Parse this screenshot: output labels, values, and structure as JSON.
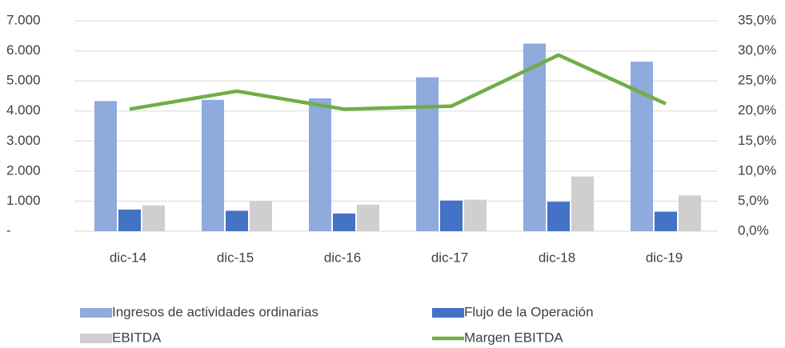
{
  "chart_data": {
    "type": "combo",
    "categories": [
      "dic-14",
      "dic-15",
      "dic-16",
      "dic-17",
      "dic-18",
      "dic-19"
    ],
    "series": [
      {
        "name": "Ingresos de actividades ordinarias",
        "type": "bar",
        "color": "#8faadc",
        "values": [
          4330,
          4370,
          4420,
          5120,
          6240,
          5640
        ]
      },
      {
        "name": "Flujo de la Operación",
        "type": "bar",
        "color": "#4472c4",
        "values": [
          720,
          680,
          590,
          1020,
          980,
          650
        ]
      },
      {
        "name": "EBITDA",
        "type": "bar",
        "color": "#d0cece",
        "values": [
          860,
          1000,
          880,
          1050,
          1820,
          1190
        ]
      },
      {
        "name": "Margen EBITDA",
        "type": "line",
        "axis": "y2",
        "color": "#70ad47",
        "values": [
          20.3,
          23.3,
          20.3,
          20.8,
          29.3,
          21.2
        ]
      }
    ],
    "ylim": [
      0,
      7000
    ],
    "yticks": [
      {
        "value": 0,
        "label": "-"
      },
      {
        "value": 1000,
        "label": "1.000"
      },
      {
        "value": 2000,
        "label": "2.000"
      },
      {
        "value": 3000,
        "label": "3.000"
      },
      {
        "value": 4000,
        "label": "4.000"
      },
      {
        "value": 5000,
        "label": "5.000"
      },
      {
        "value": 6000,
        "label": "6.000"
      },
      {
        "value": 7000,
        "label": "7.000"
      }
    ],
    "y2lim": [
      0,
      35
    ],
    "y2ticks": [
      {
        "value": 0,
        "label": "0,0%"
      },
      {
        "value": 5,
        "label": "5,0%"
      },
      {
        "value": 10,
        "label": "10,0%"
      },
      {
        "value": 15,
        "label": "15,0%"
      },
      {
        "value": 20,
        "label": "20,0%"
      },
      {
        "value": 25,
        "label": "25,0%"
      },
      {
        "value": 30,
        "label": "30,0%"
      },
      {
        "value": 35,
        "label": "35,0%"
      }
    ],
    "grid": true,
    "legend": "bottom"
  }
}
